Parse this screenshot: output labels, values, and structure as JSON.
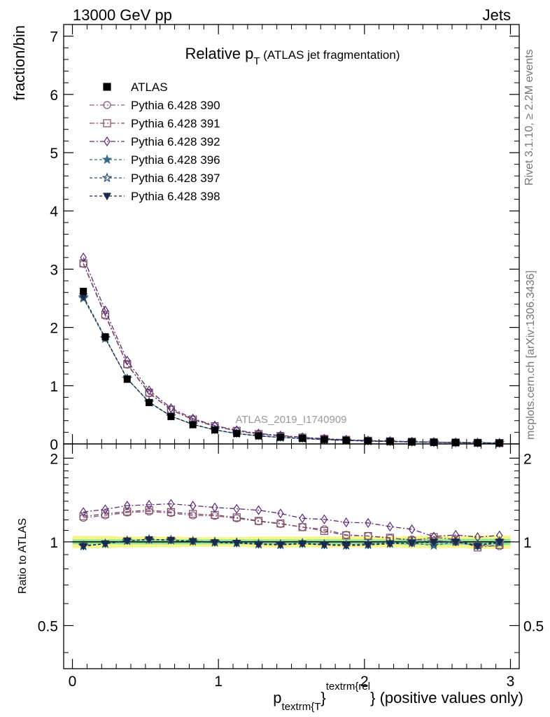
{
  "header": {
    "left": "13000 GeV pp",
    "right": "Jets"
  },
  "side_labels": {
    "rivet": "Rivet 3.1.10, ≥ 2.2M events",
    "mcplots": "mcplots.cern.ch [arXiv:1306.3436]"
  },
  "watermark": "ATLAS_2019_I1740909",
  "chart_data": {
    "type": "scatter",
    "title": {
      "main": "Relative p",
      "sub": "T",
      "tail": " (ATLAS jet fragmentation)"
    },
    "ylabel": "fraction/bin",
    "ratio_ylabel": "Ratio to ATLAS",
    "xlabel": {
      "p": "p",
      "sub": "textrm{T",
      "brace": "}",
      "sup": "textrm{rel",
      "tail": "} (positive values only)"
    },
    "xlim": [
      -0.06,
      3.06
    ],
    "ylim": [
      0,
      7.2
    ],
    "ratio_ylim": [
      0.35,
      2.25
    ],
    "x_ticks": [
      0,
      1,
      2,
      3
    ],
    "x_tick_labels": [
      "0",
      "1",
      "2",
      "3"
    ],
    "y_ticks": [
      0,
      1,
      2,
      3,
      4,
      5,
      6,
      7
    ],
    "y_tick_labels": [
      "0",
      "1",
      "2",
      "3",
      "4",
      "5",
      "6",
      "7"
    ],
    "ratio_y_ticks": [
      0.5,
      1,
      2
    ],
    "ratio_y_tick_labels": [
      "0.5",
      "1",
      "2"
    ],
    "legend_position": "top-left",
    "x": [
      0.075,
      0.225,
      0.375,
      0.525,
      0.675,
      0.825,
      0.975,
      1.125,
      1.275,
      1.425,
      1.575,
      1.725,
      1.875,
      2.025,
      2.175,
      2.325,
      2.475,
      2.625,
      2.775,
      2.925
    ],
    "data": {
      "name": "ATLAS",
      "values": [
        2.62,
        1.84,
        1.11,
        0.71,
        0.47,
        0.33,
        0.24,
        0.18,
        0.14,
        0.115,
        0.095,
        0.075,
        0.062,
        0.05,
        0.042,
        0.035,
        0.029,
        0.024,
        0.02,
        0.016
      ],
      "uncertainty": [
        0.06,
        0.05,
        0.035,
        0.028,
        0.02,
        0.016,
        0.013,
        0.011,
        0.009,
        0.008,
        0.007,
        0.006,
        0.005,
        0.004,
        0.004,
        0.003,
        0.003,
        0.003,
        0.003,
        0.002
      ],
      "color": "#000000"
    },
    "band": {
      "outer_color": "#f5f58a",
      "inner_color": "#8ee39a",
      "outer": [
        0.05,
        0.05,
        0.045,
        0.045,
        0.045,
        0.04,
        0.04,
        0.04,
        0.045,
        0.045,
        0.045,
        0.045,
        0.045,
        0.045,
        0.045,
        0.05,
        0.05,
        0.05,
        0.055,
        0.055
      ],
      "inner": [
        0.02,
        0.02,
        0.02,
        0.02,
        0.02,
        0.02,
        0.02,
        0.02,
        0.02,
        0.02,
        0.02,
        0.02,
        0.02,
        0.02,
        0.02,
        0.025,
        0.025,
        0.025,
        0.025,
        0.025
      ]
    },
    "series": [
      {
        "name": "Pythia 6.428 390",
        "color": "#8a5a8a",
        "marker": "circle-open",
        "dash": "7,3,2,3",
        "values": [
          3.09,
          2.2,
          1.36,
          0.87,
          0.585,
          0.415,
          0.3,
          0.222,
          0.168,
          0.135,
          0.11,
          0.085,
          0.069,
          0.055,
          0.046,
          0.038,
          0.031,
          0.025,
          0.02,
          0.016
        ],
        "ratio": [
          1.22,
          1.245,
          1.275,
          1.285,
          1.27,
          1.245,
          1.24,
          1.215,
          1.185,
          1.16,
          1.13,
          1.11,
          1.06,
          1.05,
          1.03,
          1.02,
          1.01,
          1.0,
          0.97,
          0.965
        ]
      },
      {
        "name": "Pythia 6.428 391",
        "color": "#7a4a5a",
        "marker": "square-open",
        "dash": "7,3,2,3",
        "values": [
          3.1,
          2.22,
          1.37,
          0.88,
          0.59,
          0.42,
          0.305,
          0.225,
          0.17,
          0.137,
          0.11,
          0.087,
          0.07,
          0.056,
          0.046,
          0.038,
          0.031,
          0.026,
          0.02,
          0.016
        ],
        "ratio": [
          1.235,
          1.26,
          1.285,
          1.3,
          1.28,
          1.26,
          1.25,
          1.225,
          1.19,
          1.165,
          1.13,
          1.095,
          1.055,
          1.05,
          1.035,
          1.01,
          1.04,
          1.02,
          0.955,
          0.975
        ]
      },
      {
        "name": "Pythia 6.428 392",
        "color": "#5a2a7a",
        "marker": "diamond-open",
        "dash": "7,3,2,3",
        "values": [
          3.2,
          2.29,
          1.43,
          0.92,
          0.615,
          0.435,
          0.315,
          0.235,
          0.18,
          0.145,
          0.115,
          0.09,
          0.072,
          0.058,
          0.048,
          0.039,
          0.031,
          0.026,
          0.021,
          0.017
        ],
        "ratio": [
          1.28,
          1.31,
          1.35,
          1.36,
          1.37,
          1.35,
          1.33,
          1.315,
          1.3,
          1.265,
          1.215,
          1.205,
          1.175,
          1.17,
          1.135,
          1.11,
          1.045,
          1.06,
          1.04,
          1.055
        ]
      },
      {
        "name": "Pythia 6.428 396",
        "color": "#3a6a8a",
        "marker": "star-filled",
        "dash": "4,3",
        "values": [
          2.5,
          1.81,
          1.12,
          0.715,
          0.475,
          0.335,
          0.24,
          0.178,
          0.137,
          0.112,
          0.093,
          0.074,
          0.06,
          0.049,
          0.041,
          0.034,
          0.028,
          0.023,
          0.019,
          0.015
        ],
        "ratio": [
          0.965,
          0.985,
          1.01,
          1.02,
          1.015,
          1.005,
          0.995,
          0.99,
          0.98,
          0.975,
          0.985,
          0.975,
          0.97,
          0.975,
          0.985,
          0.99,
          0.97,
          1.0,
          0.97,
          0.99
        ]
      },
      {
        "name": "Pythia 6.428 397",
        "color": "#2a4a6a",
        "marker": "star-open",
        "dash": "4,3",
        "values": [
          2.52,
          1.82,
          1.12,
          0.72,
          0.478,
          0.337,
          0.242,
          0.18,
          0.138,
          0.113,
          0.094,
          0.074,
          0.06,
          0.049,
          0.041,
          0.034,
          0.028,
          0.023,
          0.019,
          0.015
        ],
        "ratio": [
          0.97,
          0.985,
          1.01,
          1.02,
          1.015,
          1.005,
          1.0,
          0.995,
          0.985,
          0.98,
          0.99,
          0.98,
          0.975,
          0.985,
          0.99,
          1.005,
          0.99,
          1.005,
          0.975,
          1.005
        ]
      },
      {
        "name": "Pythia 6.428 398",
        "color": "#1a2a4a",
        "marker": "triangle-down-filled",
        "dash": "4,3",
        "values": [
          2.53,
          1.82,
          1.12,
          0.715,
          0.476,
          0.336,
          0.241,
          0.178,
          0.137,
          0.112,
          0.093,
          0.074,
          0.06,
          0.049,
          0.041,
          0.034,
          0.028,
          0.023,
          0.019,
          0.015
        ],
        "ratio": [
          0.965,
          0.985,
          1.01,
          1.02,
          1.015,
          1.005,
          0.995,
          0.99,
          0.98,
          0.975,
          0.985,
          0.975,
          0.97,
          0.975,
          0.985,
          0.99,
          1.0,
          1.0,
          0.965,
          1.0
        ]
      }
    ]
  }
}
